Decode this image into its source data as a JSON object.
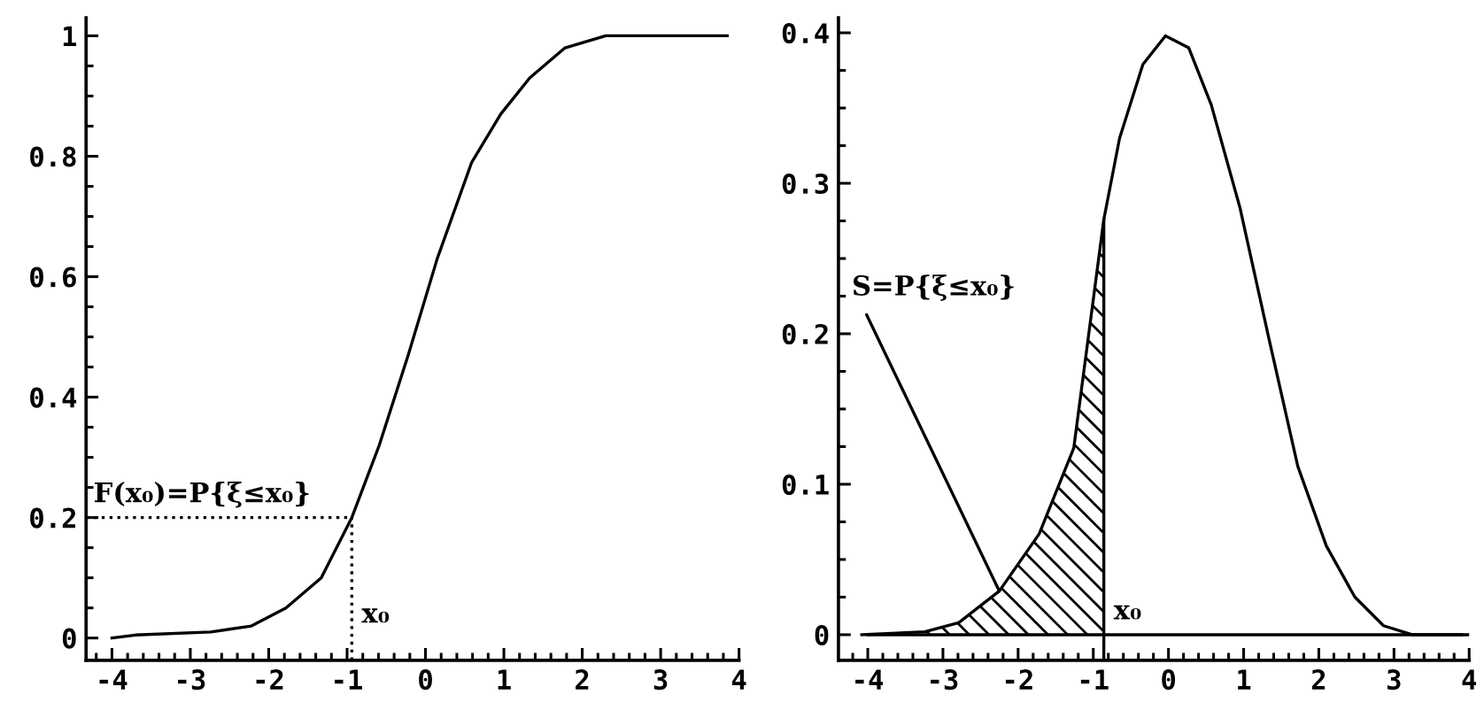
{
  "chart_data": [
    {
      "type": "line",
      "color": "#000000",
      "line_style": "solid",
      "marker": "none",
      "grid": false,
      "x": [
        -4.0,
        -3.7,
        -2.74,
        -2.22,
        -1.78,
        -1.33,
        -0.94,
        -0.59,
        -0.22,
        0.15,
        0.59,
        0.96,
        1.33,
        1.78,
        2.3,
        2.67,
        3.85
      ],
      "values": [
        0.0,
        0.005,
        0.01,
        0.02,
        0.05,
        0.1,
        0.2,
        0.32,
        0.47,
        0.63,
        0.79,
        0.87,
        0.93,
        0.98,
        1.0,
        1.0,
        1.0
      ],
      "xlim": [
        -4.33,
        4
      ],
      "ylim": [
        -0.037,
        1.03
      ],
      "xticks": [
        -4,
        -3,
        -2,
        -1,
        0,
        1,
        2,
        3,
        4
      ],
      "yticks": [
        0,
        0.2,
        0.4,
        0.6,
        0.8,
        1
      ],
      "ref_lines": [
        {
          "axis": "x",
          "value": -0.94,
          "line_style": "dotted",
          "color": "#000000"
        },
        {
          "axis": "y",
          "value": 0.2,
          "line_style": "dotted",
          "color": "#000000"
        }
      ],
      "annotations": [
        {
          "text": "F(x₀)=P{ξ≤x₀}",
          "x": -0.94,
          "y": 0.2
        },
        {
          "text": "x₀",
          "x": -0.94,
          "y": 0
        }
      ]
    },
    {
      "type": "line",
      "line_style": "solid",
      "marker": "none",
      "grid": false,
      "series": [
        {
          "color": "#000000",
          "x": [
            -4.08,
            -3.24,
            -2.79,
            -2.25,
            -1.72,
            -1.26,
            -0.86,
            -0.65,
            -0.34,
            -0.04,
            0.27,
            0.57,
            0.95,
            1.34,
            1.72,
            2.1,
            2.48,
            2.86,
            3.24,
            3.9
          ],
          "values": [
            0.0,
            0.002,
            0.008,
            0.029,
            0.067,
            0.124,
            0.276,
            0.33,
            0.379,
            0.398,
            0.39,
            0.352,
            0.284,
            0.196,
            0.112,
            0.059,
            0.025,
            0.006,
            0.0,
            0.0
          ]
        },
        {
          "type": "area",
          "color": "#000000",
          "x": [
            -4.08,
            -3.24,
            -2.79,
            -2.25,
            -1.72,
            -1.26,
            -0.86
          ],
          "values": [
            0.0,
            0.002,
            0.008,
            0.029,
            0.067,
            0.124,
            0.276
          ]
        }
      ],
      "xlim": [
        -4.39,
        4
      ],
      "ylim": [
        -0.017,
        0.41
      ],
      "xticks": [
        -4,
        -3,
        -2,
        -1,
        0,
        1,
        2,
        3,
        4
      ],
      "yticks": [
        0,
        0.1,
        0.2,
        0.3,
        0.4
      ],
      "ref_lines": [
        {
          "axis": "x",
          "value": -0.86,
          "line_style": "solid",
          "color": "#000000"
        },
        {
          "axis": "y",
          "value": 0,
          "line_style": "solid",
          "color": "#000000"
        }
      ],
      "annotations": [
        {
          "text": "S=P{ξ≤x₀}",
          "x": -2.25,
          "y": 0.029
        },
        {
          "text": "x₀",
          "x": -0.86,
          "y": 0
        }
      ]
    }
  ]
}
